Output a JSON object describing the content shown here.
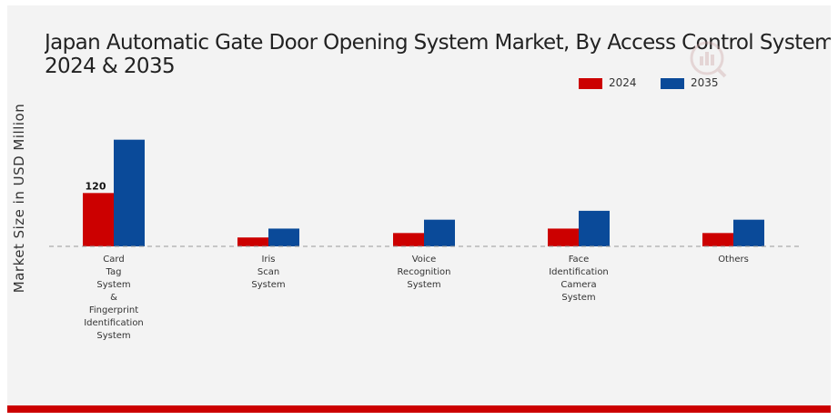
{
  "chart_data": {
    "type": "bar",
    "title_lines": [
      "Japan Automatic Gate Door Opening System Market, By Access Control System",
      "2024 & 2035"
    ],
    "ylabel": "Market Size in USD Million",
    "xlabel": "",
    "categories": [
      [
        "Card",
        "Tag",
        "System",
        "&",
        "Fingerprint",
        "Identification",
        "System"
      ],
      [
        "Iris",
        "Scan",
        "System"
      ],
      [
        "Voice",
        "Recognition",
        "System"
      ],
      [
        "Face",
        "Identification",
        "Camera",
        "System"
      ],
      [
        "Others"
      ]
    ],
    "series": [
      {
        "name": "2024",
        "color": "#cc0000",
        "values": [
          120,
          20,
          30,
          40,
          30
        ]
      },
      {
        "name": "2035",
        "color": "#0a4a99",
        "values": [
          240,
          40,
          60,
          80,
          60
        ]
      }
    ],
    "data_labels": [
      {
        "series": 0,
        "index": 0,
        "text": "120"
      }
    ],
    "ylim": [
      0,
      360
    ],
    "baseline": "dashed",
    "grid": false,
    "legend_position": "top-right"
  }
}
